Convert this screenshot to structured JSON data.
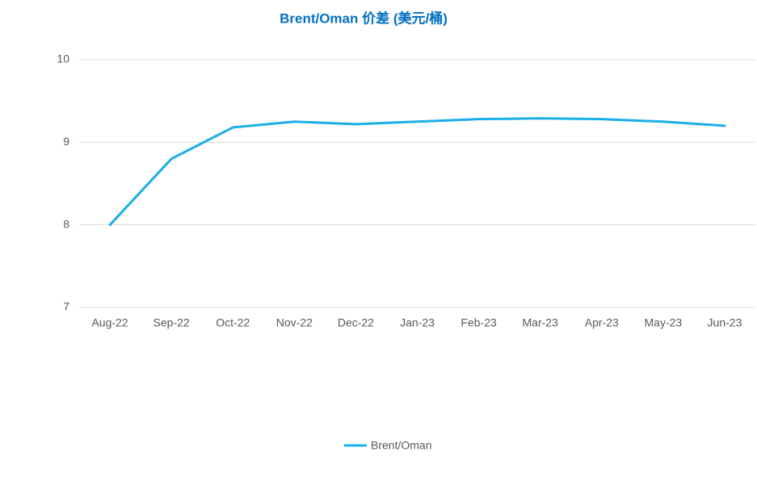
{
  "chart_data": {
    "type": "line",
    "title": "Brent/Oman 价差 (美元/桶)",
    "categories": [
      "Aug-22",
      "Sep-22",
      "Oct-22",
      "Nov-22",
      "Dec-22",
      "Jan-23",
      "Feb-23",
      "Mar-23",
      "Apr-23",
      "May-23",
      "Jun-23"
    ],
    "series": [
      {
        "name": "Brent/Oman",
        "color": "#1aafe6",
        "values": [
          8.0,
          8.8,
          9.18,
          9.25,
          9.22,
          9.25,
          9.28,
          9.29,
          9.28,
          9.25,
          9.2
        ]
      }
    ],
    "ylim": [
      7,
      10
    ],
    "yticks": [
      7,
      8,
      9,
      10
    ],
    "grid": true,
    "legend": "bottom"
  }
}
